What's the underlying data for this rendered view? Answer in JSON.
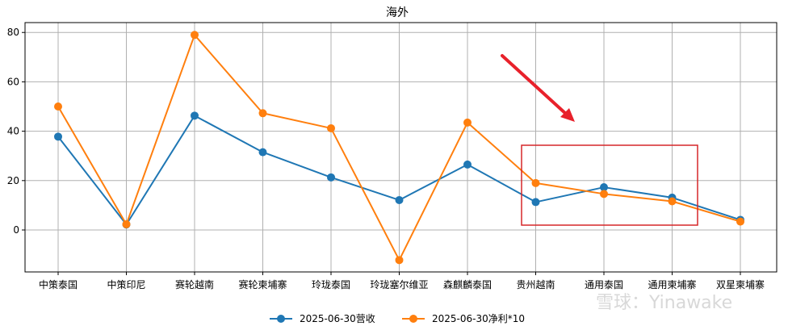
{
  "chart_data": {
    "type": "line",
    "title": "海外",
    "xlabel": "",
    "ylabel": "",
    "categories": [
      "中策泰国",
      "中策印尼",
      "赛轮越南",
      "赛轮柬埔寨",
      "玲珑泰国",
      "玲珑塞尔维亚",
      "森麒麟泰国",
      "贵州越南",
      "通用泰国",
      "通用柬埔寨",
      "双星柬埔寨"
    ],
    "series": [
      {
        "name": "2025-06-30营收",
        "color": "#1f77b4",
        "values": [
          37.8,
          2.2,
          46.3,
          31.5,
          21.3,
          12.1,
          26.5,
          11.3,
          17.3,
          13.1,
          4.1
        ]
      },
      {
        "name": "2025-06-30净利*10",
        "color": "#ff7f0e",
        "values": [
          50.0,
          2.3,
          79.0,
          47.3,
          41.2,
          -12.2,
          43.5,
          19.0,
          14.6,
          11.6,
          3.4
        ]
      }
    ],
    "ylim": [
      -17,
      84
    ],
    "yticks": [
      0,
      20,
      40,
      60,
      80
    ],
    "grid": true,
    "legend": "bottom-center",
    "annotations": {
      "arrow_color": "#e8212b",
      "box_color": "#d62728"
    },
    "watermark": "雪球：Yinawake"
  }
}
